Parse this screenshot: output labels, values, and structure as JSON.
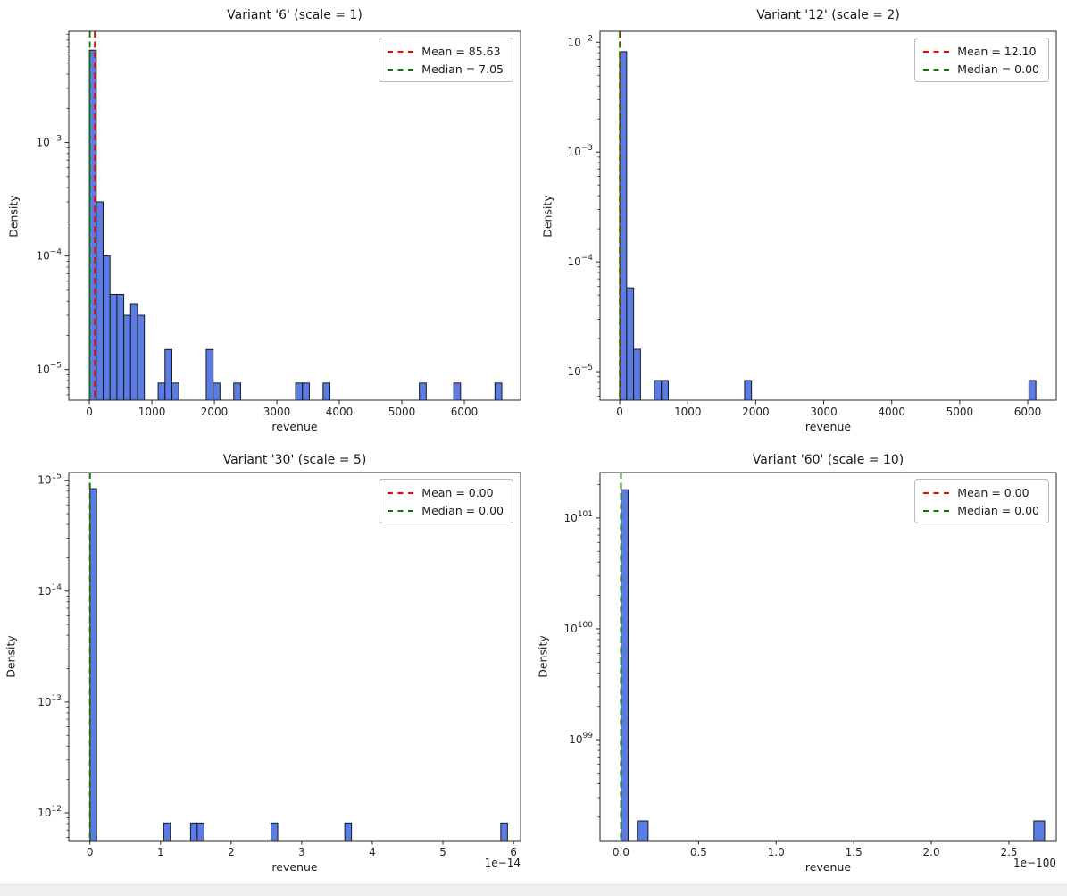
{
  "figure": {
    "background": "#ffffff",
    "bottom_strip_color": "#efefef"
  },
  "colors": {
    "bar_fill": "#5b7ce2",
    "bar_edge": "#17171f",
    "mean_line": "#fe0000",
    "median_line": "#008000",
    "spine": "#262626",
    "tick_label": "#262626"
  },
  "chart_data": [
    {
      "type": "bar",
      "subtype": "histogram-log-density",
      "title": "Variant '6' (scale = 1)",
      "xlabel": "revenue",
      "ylabel": "Density",
      "x_offset_label": null,
      "legend": [
        {
          "label": "Mean = 85.63",
          "color_key": "mean_line"
        },
        {
          "label": "Median = 7.05",
          "color_key": "median_line"
        }
      ],
      "mean": 85.63,
      "median": 7.05,
      "xlim": [
        -330,
        6900
      ],
      "xticks": [
        {
          "v": 0,
          "label": "0"
        },
        {
          "v": 1000,
          "label": "1000"
        },
        {
          "v": 2000,
          "label": "2000"
        },
        {
          "v": 3000,
          "label": "3000"
        },
        {
          "v": 4000,
          "label": "4000"
        },
        {
          "v": 5000,
          "label": "5000"
        },
        {
          "v": 6000,
          "label": "6000"
        }
      ],
      "ylog_lim": [
        -5.27,
        -2.02
      ],
      "yticks": [
        {
          "exp": -5,
          "label": "−5"
        },
        {
          "exp": -4,
          "label": "−4"
        },
        {
          "exp": -3,
          "label": "−3"
        }
      ],
      "bars": [
        {
          "x0": 0,
          "x1": 110,
          "d": 0.0065
        },
        {
          "x0": 110,
          "x1": 220,
          "d": 0.0003
        },
        {
          "x0": 220,
          "x1": 330,
          "d": 0.0001
        },
        {
          "x0": 330,
          "x1": 440,
          "d": 4.6e-05
        },
        {
          "x0": 440,
          "x1": 550,
          "d": 4.6e-05
        },
        {
          "x0": 550,
          "x1": 660,
          "d": 3e-05
        },
        {
          "x0": 660,
          "x1": 770,
          "d": 3.8e-05
        },
        {
          "x0": 770,
          "x1": 880,
          "d": 3e-05
        },
        {
          "x0": 1100,
          "x1": 1210,
          "d": 7.6e-06
        },
        {
          "x0": 1210,
          "x1": 1320,
          "d": 1.5e-05
        },
        {
          "x0": 1320,
          "x1": 1430,
          "d": 7.6e-06
        },
        {
          "x0": 1870,
          "x1": 1980,
          "d": 1.5e-05
        },
        {
          "x0": 1980,
          "x1": 2090,
          "d": 7.6e-06
        },
        {
          "x0": 2310,
          "x1": 2420,
          "d": 7.6e-06
        },
        {
          "x0": 3300,
          "x1": 3410,
          "d": 7.6e-06
        },
        {
          "x0": 3410,
          "x1": 3520,
          "d": 7.6e-06
        },
        {
          "x0": 3740,
          "x1": 3850,
          "d": 7.6e-06
        },
        {
          "x0": 5280,
          "x1": 5390,
          "d": 7.6e-06
        },
        {
          "x0": 5830,
          "x1": 5940,
          "d": 7.6e-06
        },
        {
          "x0": 6490,
          "x1": 6600,
          "d": 7.6e-06
        }
      ]
    },
    {
      "type": "bar",
      "subtype": "histogram-log-density",
      "title": "Variant '12' (scale = 2)",
      "xlabel": "revenue",
      "ylabel": "Density",
      "x_offset_label": null,
      "legend": [
        {
          "label": "Mean = 12.10",
          "color_key": "mean_line"
        },
        {
          "label": "Median = 0.00",
          "color_key": "median_line"
        }
      ],
      "mean": 12.1,
      "median": 0.0,
      "xlim": [
        -290,
        6420
      ],
      "xticks": [
        {
          "v": 0,
          "label": "0"
        },
        {
          "v": 1000,
          "label": "1000"
        },
        {
          "v": 2000,
          "label": "2000"
        },
        {
          "v": 3000,
          "label": "3000"
        },
        {
          "v": 4000,
          "label": "4000"
        },
        {
          "v": 5000,
          "label": "5000"
        },
        {
          "v": 6000,
          "label": "6000"
        }
      ],
      "ylog_lim": [
        -5.26,
        -1.9
      ],
      "yticks": [
        {
          "exp": -5,
          "label": "−5"
        },
        {
          "exp": -4,
          "label": "−4"
        },
        {
          "exp": -3,
          "label": "−3"
        },
        {
          "exp": -2,
          "label": "−2"
        }
      ],
      "bars": [
        {
          "x0": 0,
          "x1": 102,
          "d": 0.0082
        },
        {
          "x0": 102,
          "x1": 204,
          "d": 5.8e-05
        },
        {
          "x0": 204,
          "x1": 306,
          "d": 1.6e-05
        },
        {
          "x0": 510,
          "x1": 612,
          "d": 8.3e-06
        },
        {
          "x0": 612,
          "x1": 714,
          "d": 8.3e-06
        },
        {
          "x0": 1836,
          "x1": 1938,
          "d": 8.3e-06
        },
        {
          "x0": 6018,
          "x1": 6120,
          "d": 8.3e-06
        }
      ]
    },
    {
      "type": "bar",
      "subtype": "histogram-log-density",
      "title": "Variant '30' (scale = 5)",
      "xlabel": "revenue",
      "ylabel": "Density",
      "x_offset_label": "1e−14",
      "legend": [
        {
          "label": "Mean = 0.00",
          "color_key": "mean_line"
        },
        {
          "label": "Median = 0.00",
          "color_key": "median_line"
        }
      ],
      "mean": 0.0,
      "median": 0.0,
      "xlim": [
        -0.3,
        6.1
      ],
      "xticks": [
        {
          "v": 0,
          "label": "0"
        },
        {
          "v": 1,
          "label": "1"
        },
        {
          "v": 2,
          "label": "2"
        },
        {
          "v": 3,
          "label": "3"
        },
        {
          "v": 4,
          "label": "4"
        },
        {
          "v": 5,
          "label": "5"
        },
        {
          "v": 6,
          "label": "6"
        }
      ],
      "ylog_lim": [
        11.75,
        15.07
      ],
      "yticks": [
        {
          "exp": 12,
          "label": "12"
        },
        {
          "exp": 13,
          "label": "13"
        },
        {
          "exp": 14,
          "label": "14"
        },
        {
          "exp": 15,
          "label": "15"
        }
      ],
      "bars": [
        {
          "x0": 0,
          "x1": 0.095,
          "d": 840000000000000.0
        },
        {
          "x0": 1.045,
          "x1": 1.14,
          "d": 810000000000.0
        },
        {
          "x0": 1.425,
          "x1": 1.52,
          "d": 810000000000.0
        },
        {
          "x0": 1.52,
          "x1": 1.615,
          "d": 810000000000.0
        },
        {
          "x0": 2.565,
          "x1": 2.66,
          "d": 810000000000.0
        },
        {
          "x0": 3.61,
          "x1": 3.705,
          "d": 810000000000.0
        },
        {
          "x0": 5.82,
          "x1": 5.915,
          "d": 810000000000.0
        }
      ]
    },
    {
      "type": "bar",
      "subtype": "histogram-log-density",
      "title": "Variant '60' (scale = 10)",
      "xlabel": "revenue",
      "ylabel": "Density",
      "x_offset_label": "1e−100",
      "legend": [
        {
          "label": "Mean = 0.00",
          "color_key": "mean_line"
        },
        {
          "label": "Median = 0.00",
          "color_key": "median_line"
        }
      ],
      "mean": 0.0,
      "median": 0.0,
      "xlim": [
        -0.135,
        2.805
      ],
      "xticks": [
        {
          "v": 0.0,
          "label": "0.0"
        },
        {
          "v": 0.5,
          "label": "0.5"
        },
        {
          "v": 1.0,
          "label": "1.0"
        },
        {
          "v": 1.5,
          "label": "1.5"
        },
        {
          "v": 2.0,
          "label": "2.0"
        },
        {
          "v": 2.5,
          "label": "2.5"
        }
      ],
      "ylog_lim": [
        98.09,
        101.41
      ],
      "yticks": [
        {
          "exp": 99,
          "label": "99"
        },
        {
          "exp": 100,
          "label": "100"
        },
        {
          "exp": 101,
          "label": "101"
        }
      ],
      "bars": [
        {
          "x0": 0,
          "x1": 0.046,
          "d": 1.8e+101
        },
        {
          "x0": 0.105,
          "x1": 0.175,
          "d": 1.85e+98
        },
        {
          "x0": 2.66,
          "x1": 2.73,
          "d": 1.85e+98
        }
      ]
    }
  ]
}
